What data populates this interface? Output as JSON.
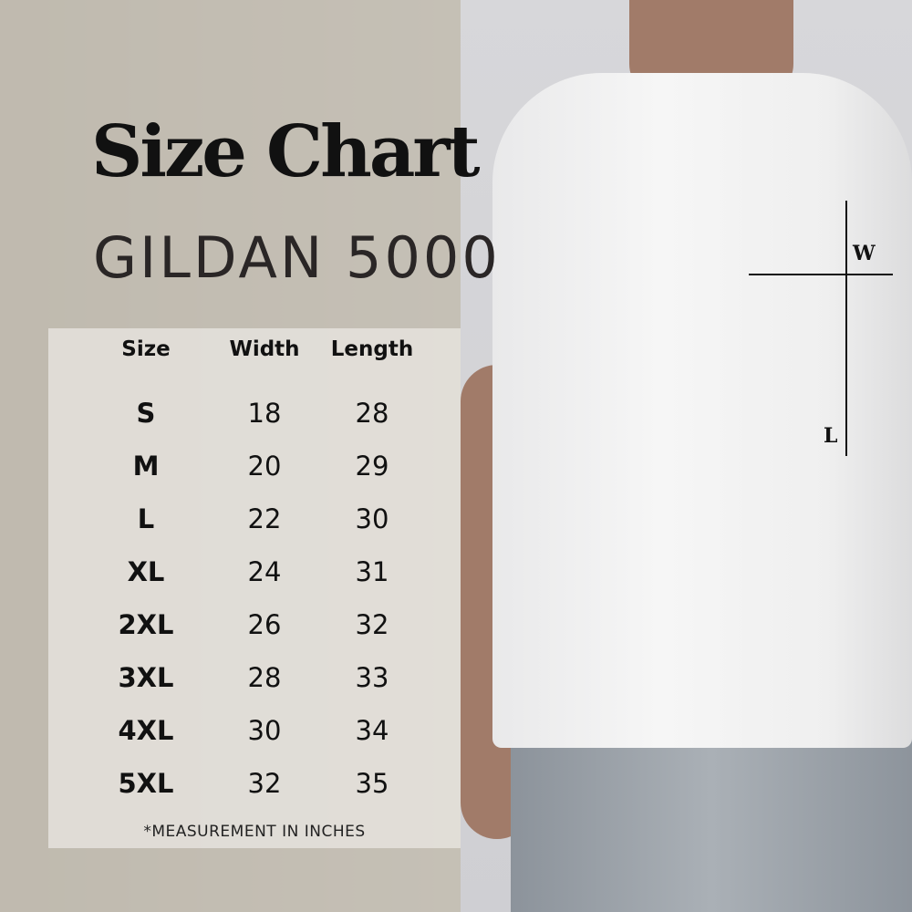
{
  "title": "Size Chart",
  "subtitle": "GILDAN 5000",
  "table": {
    "headers": [
      "Size",
      "Width",
      "Length"
    ],
    "rows": [
      [
        "S",
        "18",
        "28"
      ],
      [
        "M",
        "20",
        "29"
      ],
      [
        "L",
        "22",
        "30"
      ],
      [
        "XL",
        "24",
        "31"
      ],
      [
        "2XL",
        "26",
        "32"
      ],
      [
        "3XL",
        "28",
        "33"
      ],
      [
        "4XL",
        "30",
        "34"
      ],
      [
        "5XL",
        "32",
        "35"
      ]
    ],
    "note": "*MEASUREMENT IN INCHES"
  },
  "diagram": {
    "width_label": "W",
    "length_label": "L"
  },
  "colors": {
    "panel": "#c4beb2",
    "text": "#111111"
  }
}
